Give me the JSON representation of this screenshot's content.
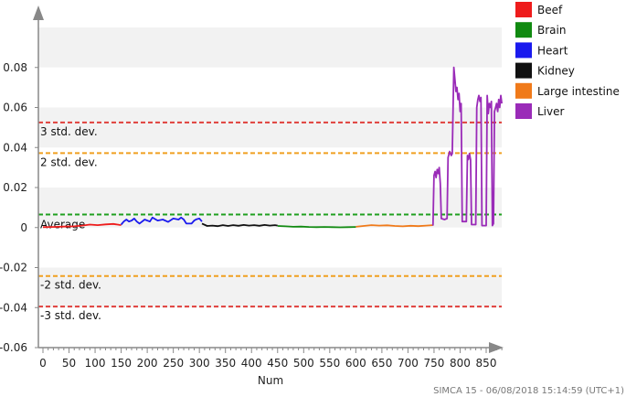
{
  "chart_data": {
    "type": "line",
    "title": "",
    "xlabel": "Num",
    "ylabel": "",
    "xlim": [
      -5,
      885
    ],
    "ylim": [
      -0.06,
      0.1
    ],
    "x_ticks": [
      0,
      50,
      100,
      150,
      200,
      250,
      300,
      350,
      400,
      450,
      500,
      550,
      600,
      650,
      700,
      750,
      800,
      850
    ],
    "y_ticks": [
      {
        "value": 0.08,
        "label": "0.08"
      },
      {
        "value": 0.06,
        "label": "0.06"
      },
      {
        "value": 0.04,
        "label": "0.04"
      },
      {
        "value": 0.02,
        "label": "0.02"
      },
      {
        "value": 0,
        "label": "0"
      },
      {
        "value": -0.02,
        "label": "-0.02"
      },
      {
        "value": -0.04,
        "label": "-0.04"
      },
      {
        "value": -0.06,
        "label": "-0.06"
      }
    ],
    "reference_lines": [
      {
        "label": "3 std. dev.",
        "value": 0.0525,
        "color": "#e0403c"
      },
      {
        "label": "2 std. dev.",
        "value": 0.0372,
        "color": "#f0a020"
      },
      {
        "label": "Average",
        "value": 0.0065,
        "color": "#20a020"
      },
      {
        "label": "-2 std. dev.",
        "value": -0.0242,
        "color": "#f0a020"
      },
      {
        "label": "-3 std. dev.",
        "value": -0.0395,
        "color": "#e0403c"
      }
    ],
    "series": [
      {
        "name": "Beef",
        "color": "#ee1c1c",
        "points": [
          [
            0,
            0.0002
          ],
          [
            20,
            0.0003
          ],
          [
            40,
            0.0005
          ],
          [
            60,
            0.0006
          ],
          [
            75,
            0.001
          ],
          [
            90,
            0.0015
          ],
          [
            105,
            0.0012
          ],
          [
            120,
            0.0016
          ],
          [
            135,
            0.0018
          ],
          [
            150,
            0.0012
          ]
        ]
      },
      {
        "name": "Heart",
        "color": "#1a1aee",
        "points": [
          [
            150,
            0.0015
          ],
          [
            155,
            0.003
          ],
          [
            160,
            0.004
          ],
          [
            165,
            0.003
          ],
          [
            170,
            0.0035
          ],
          [
            175,
            0.0045
          ],
          [
            180,
            0.003
          ],
          [
            185,
            0.002
          ],
          [
            195,
            0.004
          ],
          [
            205,
            0.003
          ],
          [
            210,
            0.005
          ],
          [
            220,
            0.0035
          ],
          [
            230,
            0.004
          ],
          [
            240,
            0.0028
          ],
          [
            250,
            0.0045
          ],
          [
            260,
            0.004
          ],
          [
            265,
            0.005
          ],
          [
            270,
            0.004
          ],
          [
            275,
            0.002
          ],
          [
            285,
            0.002
          ],
          [
            290,
            0.0035
          ],
          [
            295,
            0.0042
          ],
          [
            300,
            0.0045
          ],
          [
            305,
            0.003
          ]
        ]
      },
      {
        "name": "Kidney",
        "color": "#111111",
        "points": [
          [
            305,
            0.002
          ],
          [
            315,
            0.0008
          ],
          [
            325,
            0.001
          ],
          [
            335,
            0.0007
          ],
          [
            345,
            0.0012
          ],
          [
            355,
            0.0008
          ],
          [
            365,
            0.0012
          ],
          [
            375,
            0.0009
          ],
          [
            385,
            0.0013
          ],
          [
            395,
            0.001
          ],
          [
            405,
            0.0012
          ],
          [
            415,
            0.0009
          ],
          [
            425,
            0.0013
          ],
          [
            435,
            0.001
          ],
          [
            445,
            0.0012
          ],
          [
            450,
            0.001
          ]
        ]
      },
      {
        "name": "Brain",
        "color": "#118a11",
        "points": [
          [
            450,
            0.0008
          ],
          [
            465,
            0.0006
          ],
          [
            480,
            0.0004
          ],
          [
            495,
            0.0005
          ],
          [
            510,
            0.0003
          ],
          [
            525,
            0.0002
          ],
          [
            540,
            0.0003
          ],
          [
            555,
            0.0002
          ],
          [
            570,
            0.0001
          ],
          [
            585,
            0.0002
          ],
          [
            600,
            0.0003
          ]
        ]
      },
      {
        "name": "Large intestine",
        "color": "#f07a1a",
        "points": [
          [
            600,
            0.0004
          ],
          [
            615,
            0.0008
          ],
          [
            630,
            0.0012
          ],
          [
            645,
            0.001
          ],
          [
            660,
            0.0011
          ],
          [
            675,
            0.0008
          ],
          [
            690,
            0.0006
          ],
          [
            705,
            0.0009
          ],
          [
            720,
            0.0007
          ],
          [
            735,
            0.001
          ],
          [
            748,
            0.0012
          ]
        ]
      },
      {
        "name": "Liver",
        "color": "#9a2bb8",
        "points": [
          [
            748,
            0.001
          ],
          [
            750,
            0.026
          ],
          [
            752,
            0.028
          ],
          [
            754,
            0.025
          ],
          [
            756,
            0.029
          ],
          [
            758,
            0.027
          ],
          [
            760,
            0.03
          ],
          [
            762,
            0.022
          ],
          [
            764,
            0.0045
          ],
          [
            770,
            0.004
          ],
          [
            775,
            0.0045
          ],
          [
            777,
            0.035
          ],
          [
            780,
            0.038
          ],
          [
            783,
            0.036
          ],
          [
            785,
            0.037
          ],
          [
            788,
            0.08
          ],
          [
            790,
            0.074
          ],
          [
            792,
            0.068
          ],
          [
            794,
            0.07
          ],
          [
            796,
            0.064
          ],
          [
            798,
            0.067
          ],
          [
            800,
            0.058
          ],
          [
            802,
            0.062
          ],
          [
            804,
            0.003
          ],
          [
            808,
            0.003
          ],
          [
            812,
            0.003
          ],
          [
            814,
            0.036
          ],
          [
            816,
            0.034
          ],
          [
            818,
            0.037
          ],
          [
            820,
            0.034
          ],
          [
            822,
            0.0015
          ],
          [
            826,
            0.0015
          ],
          [
            830,
            0.0015
          ],
          [
            832,
            0.06
          ],
          [
            834,
            0.064
          ],
          [
            836,
            0.066
          ],
          [
            838,
            0.063
          ],
          [
            840,
            0.065
          ],
          [
            842,
            0.001
          ],
          [
            846,
            0.001
          ],
          [
            850,
            0.001
          ],
          [
            852,
            0.066
          ],
          [
            854,
            0.057
          ],
          [
            856,
            0.062
          ],
          [
            858,
            0.06
          ],
          [
            860,
            0.063
          ],
          [
            862,
            0.001
          ],
          [
            864,
            0.002
          ],
          [
            866,
            0.058
          ],
          [
            868,
            0.06
          ],
          [
            870,
            0.062
          ],
          [
            872,
            0.058
          ],
          [
            874,
            0.064
          ],
          [
            876,
            0.06
          ],
          [
            878,
            0.066
          ],
          [
            880,
            0.062
          ]
        ]
      }
    ],
    "legend_placement": "right"
  },
  "footer": {
    "text": "SIMCA 15 - 06/08/2018 15:14:59 (UTC+1)"
  }
}
